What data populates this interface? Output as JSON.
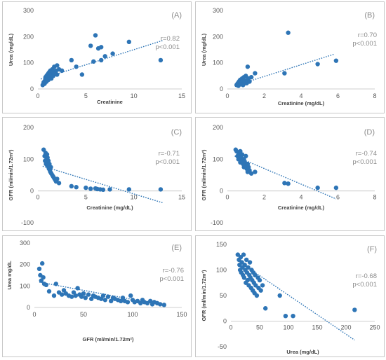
{
  "chart_data": [
    {
      "type": "scatter",
      "panel_label": "(A)",
      "xlabel": "Creatinine",
      "ylabel": "Urea (mg/dL)",
      "xlim": [
        0,
        15
      ],
      "ylim": [
        0,
        300
      ],
      "xticks": [
        0,
        5,
        10,
        15
      ],
      "yticks": [
        0,
        100,
        200,
        300
      ],
      "stats": [
        "r=0.82",
        "p<0.001"
      ],
      "trendline": [
        [
          0.3,
          38
        ],
        [
          13,
          185
        ]
      ],
      "points": [
        [
          0.5,
          15
        ],
        [
          0.6,
          25
        ],
        [
          0.7,
          30
        ],
        [
          0.7,
          20
        ],
        [
          0.8,
          35
        ],
        [
          0.8,
          45
        ],
        [
          0.9,
          28
        ],
        [
          0.9,
          50
        ],
        [
          1.0,
          40
        ],
        [
          1.0,
          55
        ],
        [
          1.1,
          35
        ],
        [
          1.1,
          60
        ],
        [
          1.2,
          45
        ],
        [
          1.2,
          65
        ],
        [
          1.3,
          50
        ],
        [
          1.3,
          70
        ],
        [
          1.4,
          40
        ],
        [
          1.4,
          55
        ],
        [
          1.5,
          60
        ],
        [
          1.5,
          75
        ],
        [
          1.6,
          50
        ],
        [
          1.6,
          65
        ],
        [
          1.7,
          85
        ],
        [
          1.8,
          60
        ],
        [
          1.9,
          70
        ],
        [
          2.0,
          55
        ],
        [
          2.0,
          90
        ],
        [
          2.2,
          75
        ],
        [
          2.5,
          70
        ],
        [
          3.5,
          110
        ],
        [
          4.0,
          85
        ],
        [
          4.6,
          55
        ],
        [
          5.5,
          165
        ],
        [
          5.8,
          105
        ],
        [
          6.0,
          205
        ],
        [
          6.3,
          155
        ],
        [
          6.6,
          160
        ],
        [
          6.6,
          110
        ],
        [
          7.0,
          125
        ],
        [
          7.8,
          135
        ],
        [
          9.5,
          180
        ],
        [
          12.8,
          110
        ]
      ]
    },
    {
      "type": "scatter",
      "panel_label": "(B)",
      "xlabel": "Creatinine (mg/dL)",
      "ylabel": "Urea (mg/dL)",
      "xlim": [
        0,
        8
      ],
      "ylim": [
        0,
        300
      ],
      "xticks": [
        0,
        2,
        4,
        6,
        8
      ],
      "yticks": [
        0,
        100,
        200,
        300
      ],
      "stats": [
        "r=0.70",
        "p<0.001"
      ],
      "trendline": [
        [
          0.4,
          12
        ],
        [
          5.8,
          133
        ]
      ],
      "points": [
        [
          0.5,
          15
        ],
        [
          0.55,
          20
        ],
        [
          0.6,
          25
        ],
        [
          0.6,
          12
        ],
        [
          0.65,
          30
        ],
        [
          0.7,
          18
        ],
        [
          0.7,
          35
        ],
        [
          0.75,
          22
        ],
        [
          0.8,
          28
        ],
        [
          0.8,
          40
        ],
        [
          0.85,
          15
        ],
        [
          0.85,
          32
        ],
        [
          0.9,
          20
        ],
        [
          0.9,
          45
        ],
        [
          0.95,
          25
        ],
        [
          1.0,
          30
        ],
        [
          1.0,
          50
        ],
        [
          1.05,
          22
        ],
        [
          1.1,
          35
        ],
        [
          1.1,
          85
        ],
        [
          1.15,
          40
        ],
        [
          1.2,
          28
        ],
        [
          1.3,
          45
        ],
        [
          1.5,
          60
        ],
        [
          3.1,
          60
        ],
        [
          3.3,
          215
        ],
        [
          4.9,
          95
        ],
        [
          5.9,
          108
        ]
      ]
    },
    {
      "type": "scatter",
      "panel_label": "(C)",
      "xlabel": "Creatinine (mg/dL)",
      "ylabel": "GFR (ml/min/1.72m²)",
      "xlim": [
        0,
        15
      ],
      "ylim": [
        -100,
        200
      ],
      "xticks": [
        0,
        5,
        10,
        15
      ],
      "yticks": [
        -100,
        0,
        100,
        200
      ],
      "stats": [
        "r=-0.71",
        "p<0.001"
      ],
      "trendline": [
        [
          0.5,
          78
        ],
        [
          13,
          -37
        ]
      ],
      "points": [
        [
          0.6,
          130
        ],
        [
          0.7,
          110
        ],
        [
          0.75,
          95
        ],
        [
          0.8,
          120
        ],
        [
          0.85,
          85
        ],
        [
          0.9,
          100
        ],
        [
          0.95,
          115
        ],
        [
          1.0,
          80
        ],
        [
          1.0,
          105
        ],
        [
          1.05,
          90
        ],
        [
          1.1,
          75
        ],
        [
          1.1,
          95
        ],
        [
          1.15,
          70
        ],
        [
          1.2,
          85
        ],
        [
          1.25,
          65
        ],
        [
          1.3,
          60
        ],
        [
          1.35,
          75
        ],
        [
          1.4,
          55
        ],
        [
          1.5,
          50
        ],
        [
          1.6,
          45
        ],
        [
          1.7,
          40
        ],
        [
          1.8,
          35
        ],
        [
          1.9,
          30
        ],
        [
          2.0,
          38
        ],
        [
          2.2,
          25
        ],
        [
          3.5,
          15
        ],
        [
          4.0,
          12
        ],
        [
          5.0,
          10
        ],
        [
          5.5,
          7
        ],
        [
          6.0,
          8
        ],
        [
          6.2,
          6
        ],
        [
          6.5,
          5
        ],
        [
          6.8,
          4
        ],
        [
          7.5,
          5
        ],
        [
          9.5,
          5
        ],
        [
          12.8,
          5
        ]
      ]
    },
    {
      "type": "scatter",
      "panel_label": "(D)",
      "xlabel": "Creatinine (mg/dL)",
      "ylabel": "GFR (ml/min/1.72m²)",
      "xlim": [
        0,
        8
      ],
      "ylim": [
        -100,
        200
      ],
      "xticks": [
        0,
        2,
        4,
        6,
        8
      ],
      "yticks": [
        -100,
        0,
        100,
        200
      ],
      "stats": [
        "r=-0.74",
        "p<0.001"
      ],
      "trendline": [
        [
          0.4,
          110
        ],
        [
          5.9,
          -25
        ]
      ],
      "points": [
        [
          0.45,
          130
        ],
        [
          0.5,
          125
        ],
        [
          0.55,
          110
        ],
        [
          0.6,
          120
        ],
        [
          0.6,
          100
        ],
        [
          0.65,
          115
        ],
        [
          0.7,
          90
        ],
        [
          0.7,
          125
        ],
        [
          0.75,
          105
        ],
        [
          0.8,
          95
        ],
        [
          0.8,
          115
        ],
        [
          0.85,
          85
        ],
        [
          0.9,
          100
        ],
        [
          0.9,
          75
        ],
        [
          0.95,
          90
        ],
        [
          1.0,
          80
        ],
        [
          1.0,
          110
        ],
        [
          1.05,
          70
        ],
        [
          1.1,
          85
        ],
        [
          1.1,
          60
        ],
        [
          1.15,
          75
        ],
        [
          1.2,
          65
        ],
        [
          1.3,
          55
        ],
        [
          1.5,
          60
        ],
        [
          3.1,
          25
        ],
        [
          3.3,
          23
        ],
        [
          4.9,
          10
        ],
        [
          5.9,
          10
        ]
      ]
    },
    {
      "type": "scatter",
      "panel_label": "(E)",
      "xlabel": "GFR (ml/min/1.72m²)",
      "ylabel": "Urea mg/dL",
      "xlim": [
        0,
        150
      ],
      "ylim": [
        0,
        300
      ],
      "xticks": [
        0,
        50,
        100,
        150
      ],
      "yticks": [
        0,
        100,
        200,
        300
      ],
      "stats": [
        "r=-0.76",
        "p<0.001"
      ],
      "trendline": [
        [
          5,
          118
        ],
        [
          130,
          12
        ]
      ],
      "points": [
        [
          5,
          180
        ],
        [
          6,
          150
        ],
        [
          7,
          125
        ],
        [
          8,
          205
        ],
        [
          9,
          140
        ],
        [
          10,
          110
        ],
        [
          12,
          105
        ],
        [
          15,
          75
        ],
        [
          20,
          55
        ],
        [
          22,
          110
        ],
        [
          25,
          70
        ],
        [
          28,
          60
        ],
        [
          30,
          80
        ],
        [
          32,
          65
        ],
        [
          35,
          55
        ],
        [
          38,
          50
        ],
        [
          40,
          70
        ],
        [
          42,
          55
        ],
        [
          44,
          90
        ],
        [
          46,
          60
        ],
        [
          48,
          50
        ],
        [
          50,
          65
        ],
        [
          52,
          45
        ],
        [
          55,
          60
        ],
        [
          58,
          40
        ],
        [
          60,
          55
        ],
        [
          62,
          50
        ],
        [
          65,
          45
        ],
        [
          68,
          40
        ],
        [
          70,
          55
        ],
        [
          72,
          35
        ],
        [
          75,
          50
        ],
        [
          78,
          30
        ],
        [
          80,
          45
        ],
        [
          82,
          40
        ],
        [
          85,
          35
        ],
        [
          88,
          30
        ],
        [
          90,
          45
        ],
        [
          92,
          30
        ],
        [
          95,
          25
        ],
        [
          98,
          55
        ],
        [
          100,
          35
        ],
        [
          102,
          25
        ],
        [
          105,
          30
        ],
        [
          108,
          20
        ],
        [
          110,
          35
        ],
        [
          112,
          25
        ],
        [
          115,
          20
        ],
        [
          118,
          30
        ],
        [
          120,
          15
        ],
        [
          122,
          25
        ],
        [
          125,
          20
        ],
        [
          128,
          15
        ],
        [
          132,
          12
        ]
      ]
    },
    {
      "type": "scatter",
      "panel_label": "(F)",
      "xlabel": "Urea (mg/dL)",
      "ylabel": "GFR (ml/min/1.72m²)",
      "xlim": [
        0,
        250
      ],
      "ylim": [
        -50,
        150
      ],
      "xticks": [
        0,
        50,
        100,
        150,
        200,
        250
      ],
      "yticks": [
        -50,
        0,
        50,
        100,
        150
      ],
      "stats": [
        "r=-0.68",
        "p<0.001"
      ],
      "trendline": [
        [
          12,
          118
        ],
        [
          215,
          -37
        ]
      ],
      "points": [
        [
          12,
          130
        ],
        [
          14,
          120
        ],
        [
          15,
          110
        ],
        [
          16,
          100
        ],
        [
          17,
          125
        ],
        [
          18,
          95
        ],
        [
          19,
          115
        ],
        [
          20,
          105
        ],
        [
          21,
          90
        ],
        [
          22,
          130
        ],
        [
          23,
          85
        ],
        [
          24,
          110
        ],
        [
          25,
          100
        ],
        [
          26,
          75
        ],
        [
          27,
          120
        ],
        [
          28,
          95
        ],
        [
          29,
          80
        ],
        [
          30,
          105
        ],
        [
          31,
          70
        ],
        [
          32,
          90
        ],
        [
          33,
          115
        ],
        [
          34,
          85
        ],
        [
          35,
          65
        ],
        [
          36,
          100
        ],
        [
          37,
          80
        ],
        [
          38,
          60
        ],
        [
          39,
          95
        ],
        [
          40,
          75
        ],
        [
          41,
          55
        ],
        [
          42,
          90
        ],
        [
          43,
          70
        ],
        [
          45,
          50
        ],
        [
          47,
          85
        ],
        [
          48,
          65
        ],
        [
          50,
          80
        ],
        [
          52,
          60
        ],
        [
          55,
          70
        ],
        [
          60,
          25
        ],
        [
          85,
          50
        ],
        [
          95,
          10
        ],
        [
          108,
          10
        ],
        [
          215,
          22
        ]
      ]
    }
  ]
}
